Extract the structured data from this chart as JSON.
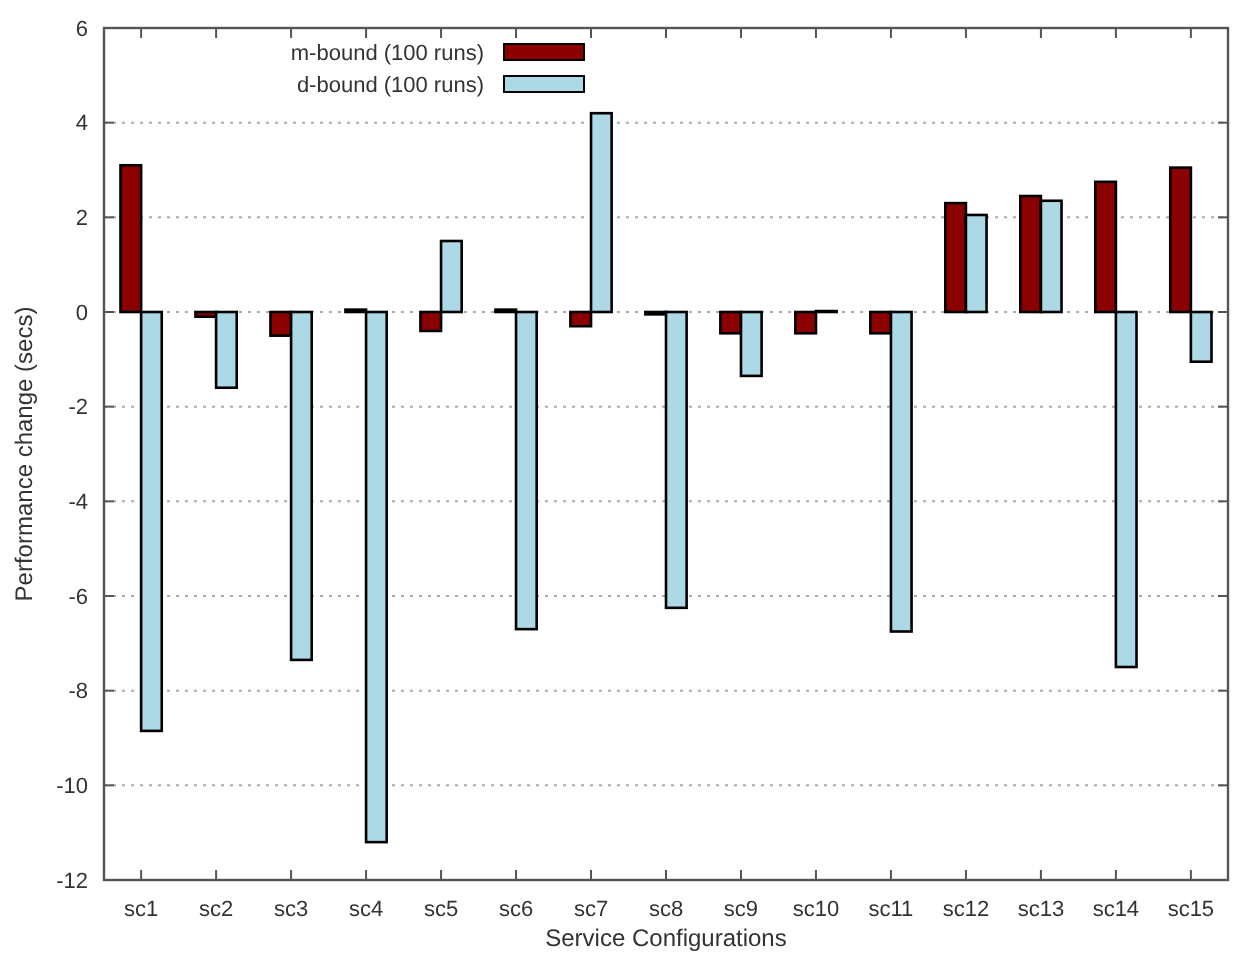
{
  "chart_data": {
    "type": "bar",
    "xlabel": "Service Configurations",
    "ylabel": "Performance change (secs)",
    "categories": [
      "sc1",
      "sc2",
      "sc3",
      "sc4",
      "sc5",
      "sc6",
      "sc7",
      "sc8",
      "sc9",
      "sc10",
      "sc11",
      "sc12",
      "sc13",
      "sc14",
      "sc15"
    ],
    "series": [
      {
        "name": "m-bound (100 runs)",
        "color": "#8b0000",
        "values": [
          3.1,
          -0.1,
          -0.5,
          0.05,
          -0.4,
          0.05,
          -0.3,
          -0.05,
          -0.45,
          -0.45,
          -0.45,
          2.3,
          2.45,
          2.75,
          3.05
        ]
      },
      {
        "name": "d-bound (100 runs)",
        "color": "#add8e6",
        "values": [
          -8.85,
          -1.6,
          -7.35,
          -11.2,
          1.5,
          -6.7,
          4.2,
          -6.25,
          -1.35,
          0.02,
          -6.75,
          2.05,
          2.35,
          -7.5,
          -1.05
        ]
      }
    ],
    "ylim": [
      -12,
      6
    ],
    "yticks": [
      -12,
      -10,
      -8,
      -6,
      -4,
      -2,
      0,
      2,
      4,
      6
    ],
    "grid": "y",
    "legend": "top left"
  }
}
